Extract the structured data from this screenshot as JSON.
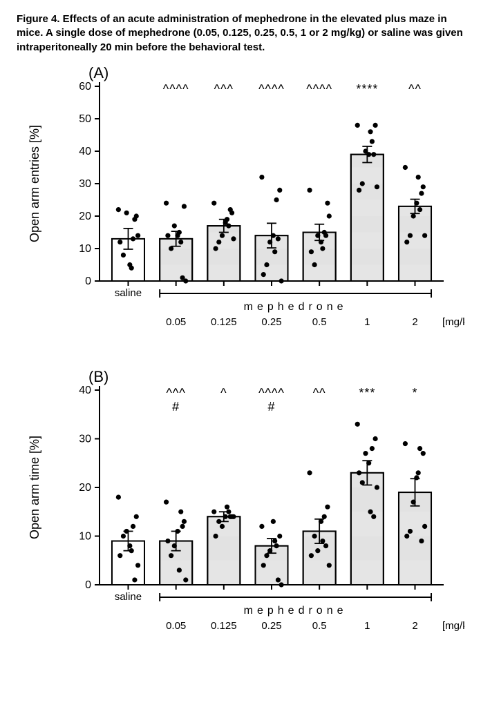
{
  "caption": "Figure 4. Effects of an acute administration of mephedrone in the elevated plus maze in mice. A single dose of mephedrone (0.05, 0.125, 0.25, 0.5, 1 or 2 mg/kg) or saline was given intraperitoneally 20 min before the behavioral test.",
  "panelA": {
    "label": "(A)",
    "ylabel": "Open arm entries [%]",
    "ylim": [
      0,
      60
    ],
    "yticks": [
      0,
      10,
      20,
      30,
      40,
      50,
      60
    ],
    "bar_fill_open": "#ffffff",
    "bar_fill_shaded": "#e2e2e2",
    "stripe_fill": "#d6d6d6",
    "categories": [
      "saline",
      "0.05",
      "0.125",
      "0.25",
      "0.5",
      "1",
      "2"
    ],
    "treatment_label": "mephedrone",
    "unit_label": "[mg/kg]",
    "bars": [
      {
        "mean": 13,
        "err": 3.2,
        "shaded": false,
        "sig1": ""
      },
      {
        "mean": 13,
        "err": 2.3,
        "shaded": true,
        "sig1": "^^^^"
      },
      {
        "mean": 17,
        "err": 2.0,
        "shaded": true,
        "sig1": "^^^"
      },
      {
        "mean": 14,
        "err": 3.8,
        "shaded": true,
        "sig1": "^^^^"
      },
      {
        "mean": 15,
        "err": 2.5,
        "shaded": true,
        "sig1": "^^^^"
      },
      {
        "mean": 39,
        "err": 2.5,
        "shaded": true,
        "sig1": "****"
      },
      {
        "mean": 23,
        "err": 2.2,
        "shaded": true,
        "sig1": "^^"
      }
    ],
    "points": [
      [
        22,
        20,
        13,
        5,
        21,
        8,
        12,
        14,
        19,
        4
      ],
      [
        24,
        23,
        12,
        14,
        17,
        10,
        14,
        0,
        1,
        15
      ],
      [
        24,
        21,
        17,
        18,
        14,
        12,
        10,
        13,
        22,
        19
      ],
      [
        32,
        28,
        25,
        14,
        12,
        5,
        2,
        0,
        13,
        9
      ],
      [
        28,
        24,
        15,
        12,
        14,
        5,
        9,
        20,
        14,
        10
      ],
      [
        48,
        48,
        43,
        39,
        40,
        30,
        28,
        29,
        39,
        46
      ],
      [
        35,
        29,
        22,
        24,
        20,
        14,
        12,
        14,
        27,
        32
      ]
    ]
  },
  "panelB": {
    "label": "(B)",
    "ylabel": "Open arm time [%]",
    "ylim": [
      0,
      40
    ],
    "yticks": [
      0,
      10,
      20,
      30,
      40
    ],
    "bar_fill_open": "#ffffff",
    "bar_fill_shaded": "#e2e2e2",
    "stripe_fill": "#d6d6d6",
    "categories": [
      "saline",
      "0.05",
      "0.125",
      "0.25",
      "0.5",
      "1",
      "2"
    ],
    "treatment_label": "mephedrone",
    "unit_label": "[mg/kg]",
    "bars": [
      {
        "mean": 9,
        "err": 2.0,
        "shaded": false,
        "sig1": "",
        "sig2": ""
      },
      {
        "mean": 9,
        "err": 2.0,
        "shaded": true,
        "sig1": "^^^",
        "sig2": "#"
      },
      {
        "mean": 14,
        "err": 1.0,
        "shaded": true,
        "sig1": "^",
        "sig2": ""
      },
      {
        "mean": 8,
        "err": 1.5,
        "shaded": true,
        "sig1": "^^^^",
        "sig2": "#"
      },
      {
        "mean": 11,
        "err": 2.5,
        "shaded": true,
        "sig1": "^^",
        "sig2": ""
      },
      {
        "mean": 23,
        "err": 2.5,
        "shaded": true,
        "sig1": "***",
        "sig2": ""
      },
      {
        "mean": 19,
        "err": 2.8,
        "shaded": true,
        "sig1": "*",
        "sig2": ""
      }
    ],
    "points": [
      [
        18,
        14,
        12,
        8,
        11,
        10,
        6,
        4,
        1,
        7
      ],
      [
        17,
        13,
        15,
        11,
        8,
        6,
        9,
        1,
        12,
        3
      ],
      [
        15,
        14,
        15,
        14,
        12,
        13,
        10,
        14,
        14,
        16
      ],
      [
        12,
        10,
        8,
        13,
        7,
        6,
        4,
        0,
        1,
        9
      ],
      [
        23,
        16,
        14,
        13,
        7,
        10,
        6,
        4,
        8,
        9
      ],
      [
        33,
        30,
        28,
        25,
        27,
        21,
        23,
        20,
        14,
        15
      ],
      [
        29,
        27,
        28,
        22,
        17,
        11,
        10,
        12,
        9,
        23
      ]
    ]
  }
}
